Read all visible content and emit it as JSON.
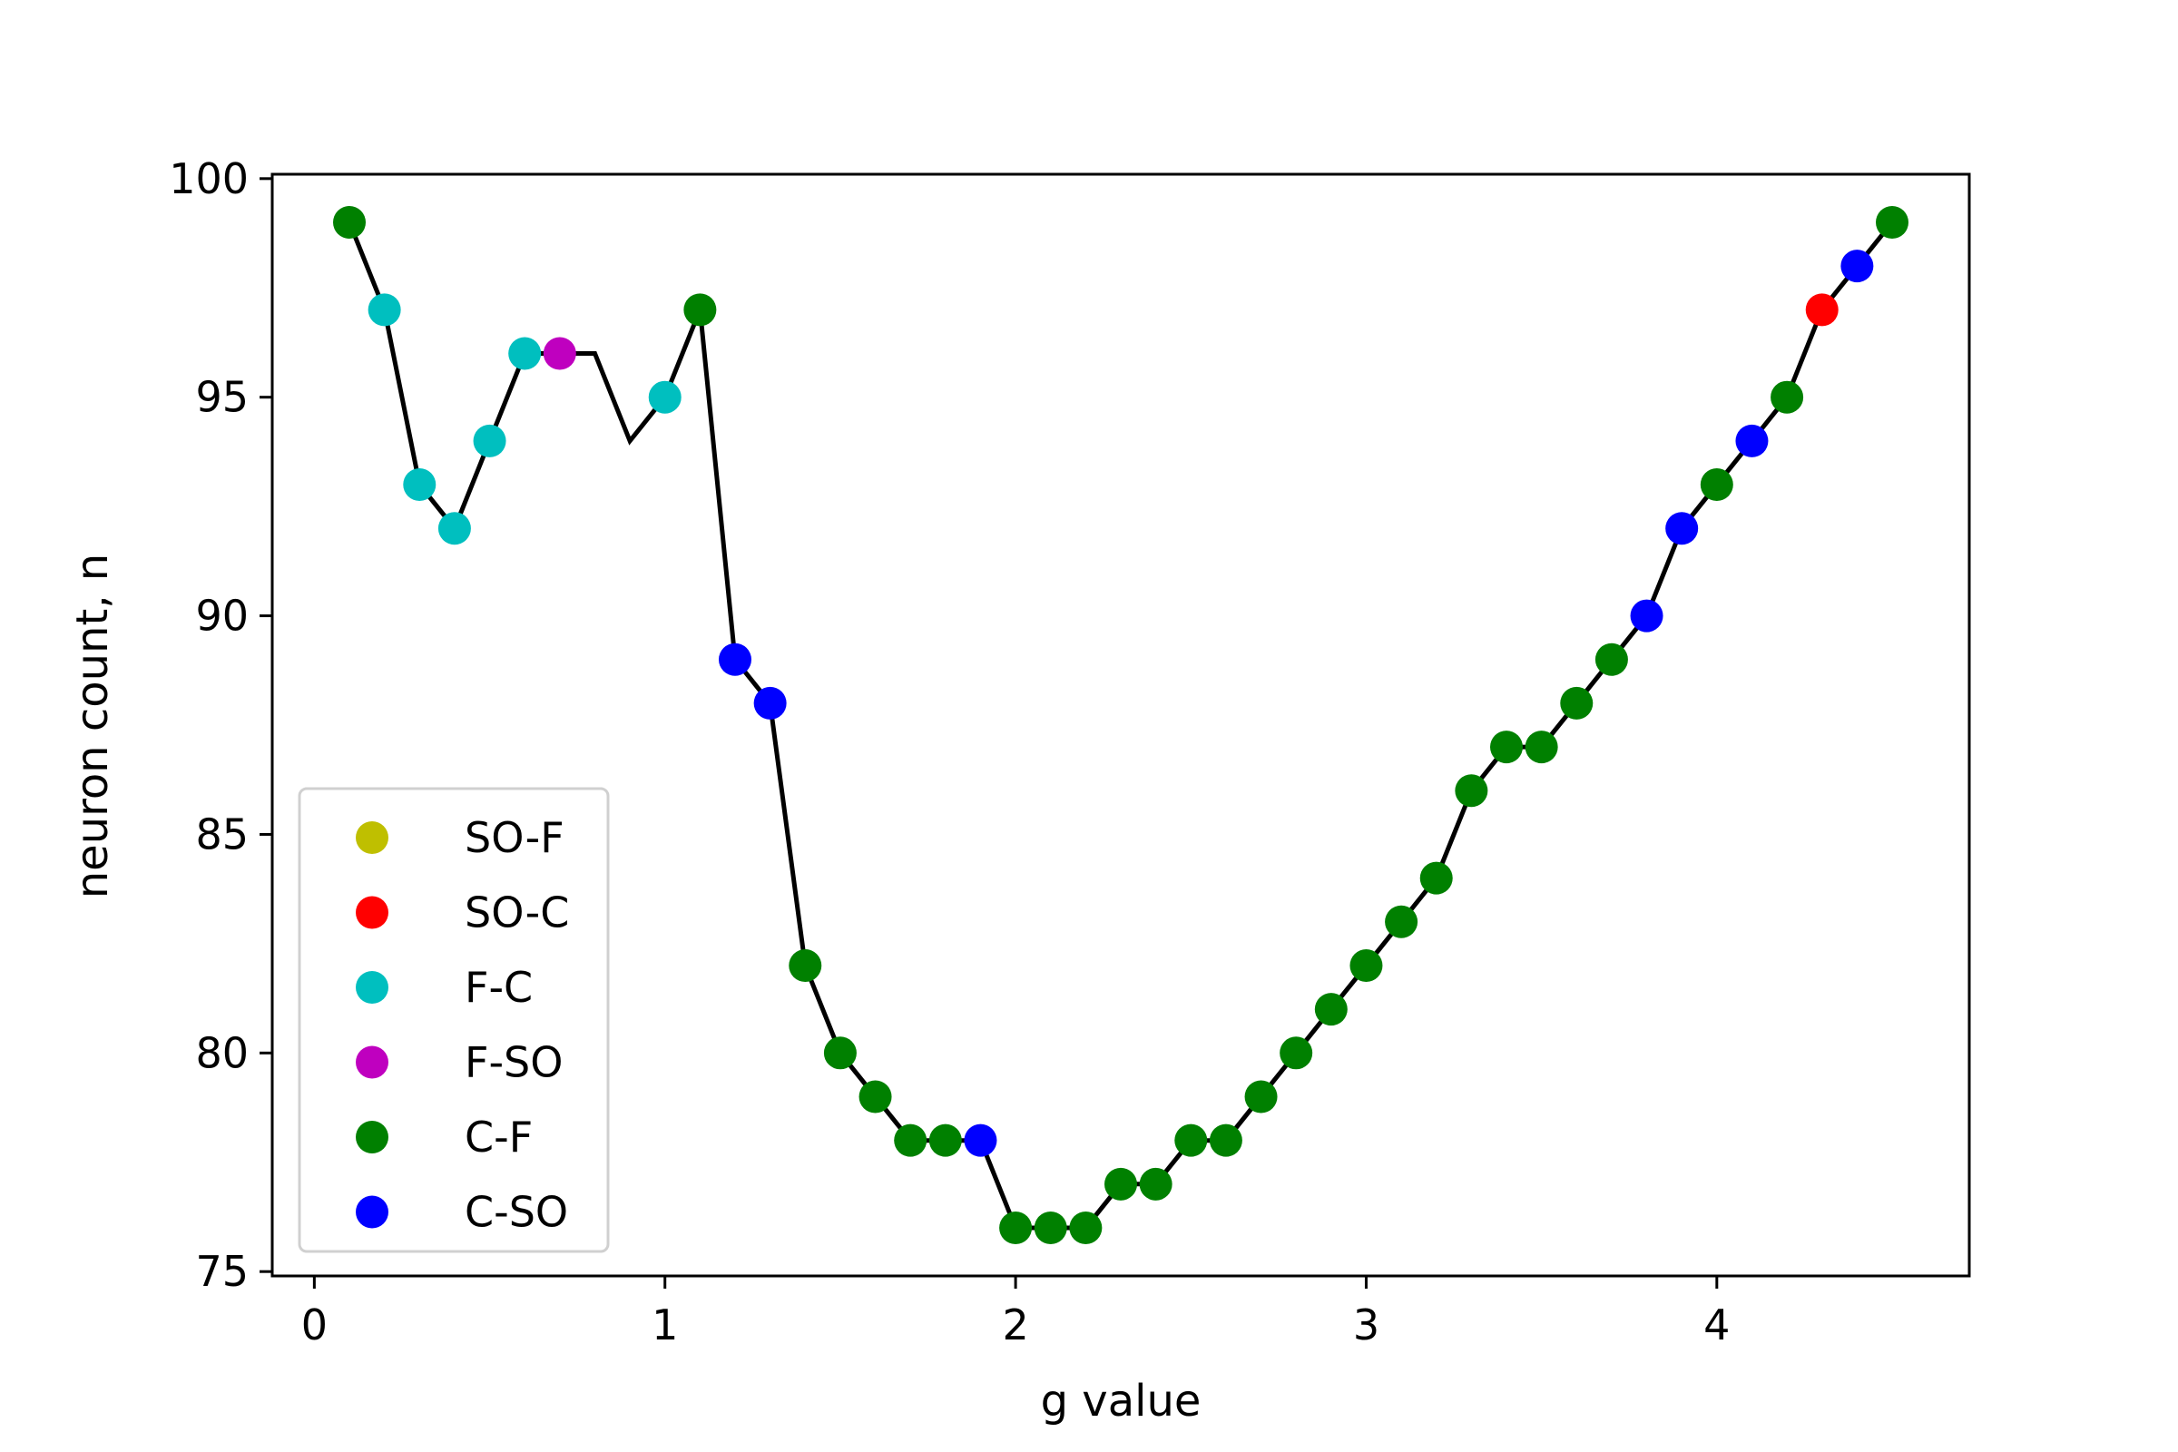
{
  "chart_data": {
    "type": "scatter",
    "xlabel": "g value",
    "ylabel": "neuron count, n",
    "xlim": [
      -0.12,
      4.72
    ],
    "ylim": [
      74.9,
      100.1
    ],
    "xticks": [
      0,
      1,
      2,
      3,
      4
    ],
    "yticks": [
      75,
      80,
      85,
      90,
      95,
      100
    ],
    "grid": false,
    "legend_position": "lower-left",
    "line": {
      "color": "#000000",
      "x": [
        0.1,
        0.2,
        0.3,
        0.4,
        0.5,
        0.6,
        0.7,
        0.8,
        0.9,
        1.0,
        1.1,
        1.2,
        1.3,
        1.4,
        1.5,
        1.6,
        1.7,
        1.8,
        1.9,
        2.0,
        2.1,
        2.2,
        2.3,
        2.4,
        2.5,
        2.6,
        2.7,
        2.8,
        2.9,
        3.0,
        3.1,
        3.2,
        3.3,
        3.4,
        3.5,
        3.6,
        3.7,
        3.8,
        3.9,
        4.0,
        4.1,
        4.2,
        4.3,
        4.4,
        4.5
      ],
      "y": [
        99,
        97,
        93,
        92,
        94,
        96,
        96,
        96,
        94,
        95,
        97,
        89,
        88,
        82,
        80,
        79,
        78,
        78,
        78,
        76,
        76,
        76,
        77,
        77,
        78,
        78,
        79,
        80,
        81,
        82,
        83,
        84,
        86,
        87,
        87,
        88,
        89,
        90,
        92,
        93,
        94,
        95,
        97,
        98,
        99
      ]
    },
    "series": [
      {
        "name": "SO-F",
        "color": "#bfbf00",
        "points": []
      },
      {
        "name": "SO-C",
        "color": "#ff0000",
        "points": [
          [
            4.3,
            97
          ]
        ]
      },
      {
        "name": "F-C",
        "color": "#00bfbf",
        "points": [
          [
            0.2,
            97
          ],
          [
            0.3,
            93
          ],
          [
            0.4,
            92
          ],
          [
            0.5,
            94
          ],
          [
            0.6,
            96
          ],
          [
            1.0,
            95
          ]
        ]
      },
      {
        "name": "F-SO",
        "color": "#bf00bf",
        "points": [
          [
            0.7,
            96
          ]
        ]
      },
      {
        "name": "C-F",
        "color": "#008000",
        "points": [
          [
            0.1,
            99
          ],
          [
            1.1,
            97
          ],
          [
            1.4,
            82
          ],
          [
            1.5,
            80
          ],
          [
            1.6,
            79
          ],
          [
            1.7,
            78
          ],
          [
            1.8,
            78
          ],
          [
            2.0,
            76
          ],
          [
            2.1,
            76
          ],
          [
            2.2,
            76
          ],
          [
            2.3,
            77
          ],
          [
            2.4,
            77
          ],
          [
            2.5,
            78
          ],
          [
            2.6,
            78
          ],
          [
            2.7,
            79
          ],
          [
            2.8,
            80
          ],
          [
            2.9,
            81
          ],
          [
            3.0,
            82
          ],
          [
            3.1,
            83
          ],
          [
            3.2,
            84
          ],
          [
            3.3,
            86
          ],
          [
            3.4,
            87
          ],
          [
            3.5,
            87
          ],
          [
            3.6,
            88
          ],
          [
            3.7,
            89
          ],
          [
            4.0,
            93
          ],
          [
            4.2,
            95
          ],
          [
            4.5,
            99
          ]
        ]
      },
      {
        "name": "C-SO",
        "color": "#0000ff",
        "points": [
          [
            1.2,
            89
          ],
          [
            1.3,
            88
          ],
          [
            1.9,
            78
          ],
          [
            3.8,
            90
          ],
          [
            3.9,
            92
          ],
          [
            4.1,
            94
          ],
          [
            4.4,
            98
          ]
        ]
      }
    ]
  }
}
